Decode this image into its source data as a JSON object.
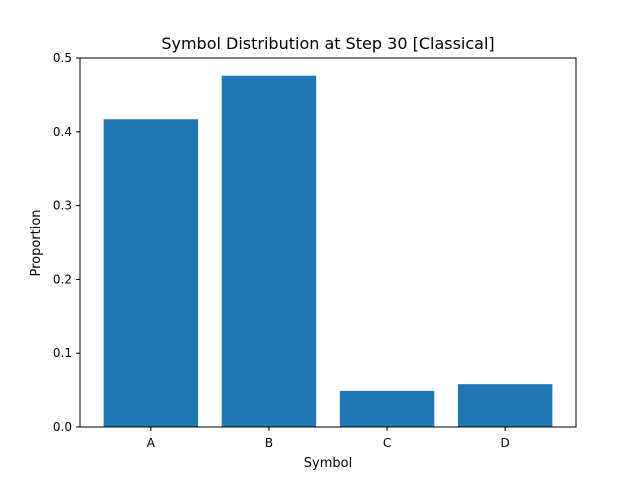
{
  "chart_data": {
    "type": "bar",
    "title": "Symbol Distribution at Step 30 [Classical]",
    "xlabel": "Symbol",
    "ylabel": "Proportion",
    "categories": [
      "A",
      "B",
      "C",
      "D"
    ],
    "values": [
      0.417,
      0.476,
      0.049,
      0.058
    ],
    "ylim": [
      0,
      0.5
    ],
    "yticks": [
      "0.0",
      "0.1",
      "0.2",
      "0.3",
      "0.4",
      "0.5"
    ],
    "bar_color": "#1f77b4",
    "grid": false,
    "legend": "none"
  }
}
